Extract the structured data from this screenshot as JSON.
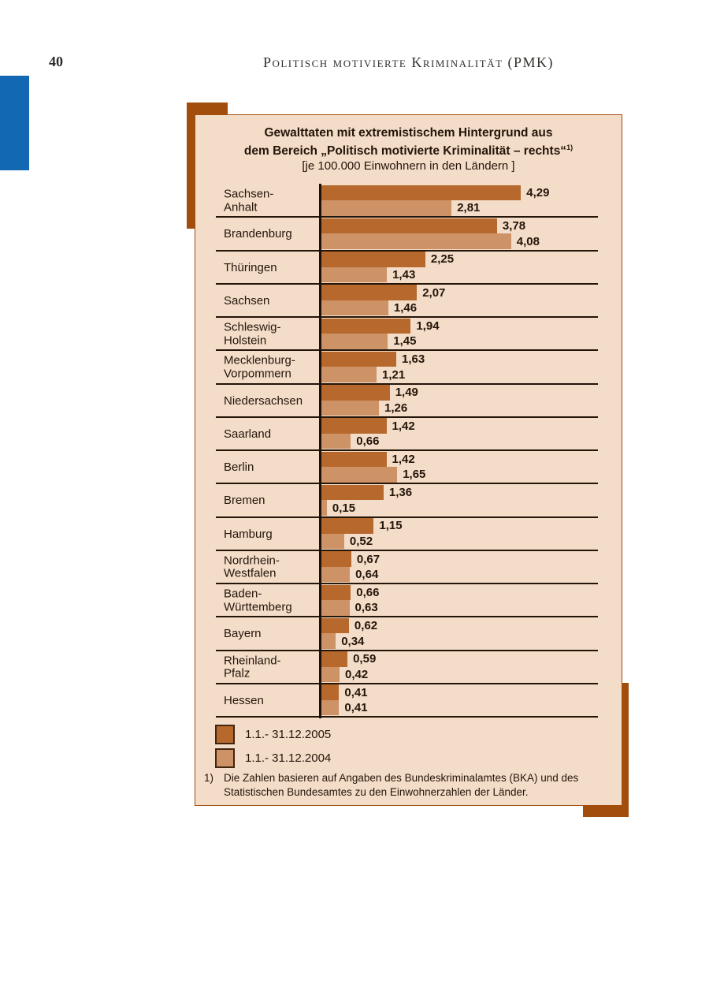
{
  "page": {
    "number": "40",
    "header_title": "Politisch motivierte Kriminalität (PMK)"
  },
  "chart": {
    "title_line1": "Gewalttaten mit extremistischem Hintergrund aus",
    "title_line2": "dem Bereich „Politisch motivierte Kriminalität – rechts“",
    "title_footnote_marker": "1)",
    "subtitle": "[je 100.000 Einwohnern in den Ländern ]",
    "legend": [
      {
        "label": "1.1.- 31.12.2005",
        "color": "#b7692d"
      },
      {
        "label": "1.1.- 31.12.2004",
        "color": "#ce9267"
      }
    ],
    "footnote_marker": "1)",
    "footnote_text": "Die Zahlen basieren auf Angaben des Bundeskriminalamtes (BKA) und des Statistischen Bundesamtes zu den Einwohnerzahlen der Länder."
  },
  "chart_data": {
    "type": "bar",
    "orientation": "horizontal",
    "title": "Gewalttaten mit extremistischem Hintergrund aus dem Bereich „Politisch motivierte Kriminalität – rechts“ [je 100.000 Einwohnern in den Ländern]",
    "categories": [
      "Sachsen-Anhalt",
      "Brandenburg",
      "Thüringen",
      "Sachsen",
      "Schleswig-Holstein",
      "Mecklenburg-Vorpommern",
      "Niedersachsen",
      "Saarland",
      "Berlin",
      "Bremen",
      "Hamburg",
      "Nordrhein-Westfalen",
      "Baden-Württemberg",
      "Bayern",
      "Rheinland-Pfalz",
      "Hessen"
    ],
    "category_lines": [
      [
        "Sachsen-",
        "Anhalt"
      ],
      [
        "Brandenburg"
      ],
      [
        "Thüringen"
      ],
      [
        "Sachsen"
      ],
      [
        "Schleswig-",
        "Holstein"
      ],
      [
        "Mecklenburg-",
        "Vorpommern"
      ],
      [
        "Niedersachsen"
      ],
      [
        "Saarland"
      ],
      [
        "Berlin"
      ],
      [
        "Bremen"
      ],
      [
        "Hamburg"
      ],
      [
        "Nordrhein-",
        "Westfalen"
      ],
      [
        "Baden-",
        "Württemberg"
      ],
      [
        "Bayern"
      ],
      [
        "Rheinland-",
        "Pfalz"
      ],
      [
        "Hessen"
      ]
    ],
    "series": [
      {
        "name": "1.1.- 31.12.2005",
        "values": [
          4.29,
          3.78,
          2.25,
          2.07,
          1.94,
          1.63,
          1.49,
          1.42,
          1.42,
          1.36,
          1.15,
          0.67,
          0.66,
          0.62,
          0.59,
          0.41
        ]
      },
      {
        "name": "1.1.- 31.12.2004",
        "values": [
          2.81,
          4.08,
          1.43,
          1.46,
          1.45,
          1.21,
          1.26,
          0.66,
          1.65,
          0.15,
          0.52,
          0.64,
          0.63,
          0.34,
          0.42,
          0.41
        ]
      }
    ],
    "xlim": [
      0,
      4.6
    ],
    "grid": false,
    "legend_position": "bottom-left",
    "value_label_format": "comma-decimal, 2 digits"
  },
  "colors": {
    "bar_2005": "#b7692d",
    "bar_2004": "#ce9267",
    "box_background": "#f3dcc8",
    "box_border": "#a24d0c",
    "corner_accent": "#a24d0c",
    "axis_line": "#1c1007",
    "separator_line": "#241509",
    "text": "#241509",
    "blue_tab": "#1268b3"
  }
}
